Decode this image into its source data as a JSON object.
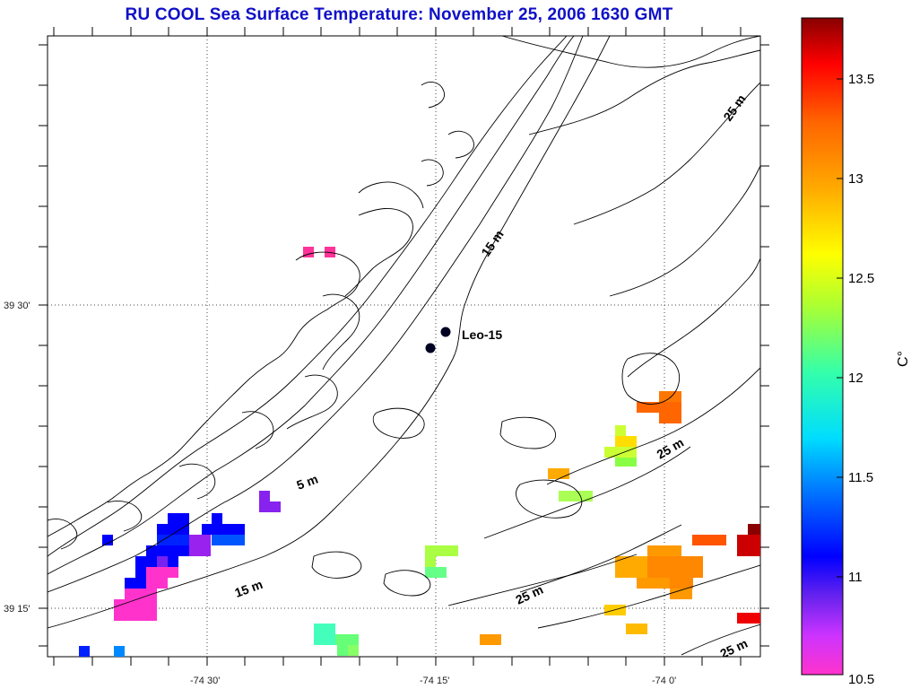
{
  "title": "RU COOL  Sea Surface Temperature:  November 25, 2006 1630 GMT",
  "axes": {
    "lat_labels": [
      "39 30'",
      "39 15'"
    ],
    "lon_labels": [
      "-74 30'",
      "-74 15'",
      "-74 0'"
    ]
  },
  "labels": {
    "station": "Leo-15",
    "depth_5": "5 m",
    "depth_15a": "15 m",
    "depth_15b": "15 m",
    "depth_25a": "25 m",
    "depth_25b": "25 m",
    "depth_25c": "25 m",
    "depth_25d": "25 m"
  },
  "colorbar": {
    "unit": "C°",
    "min": 10.5,
    "max": 13.8,
    "ticks": [
      "13.5",
      "13",
      "12.5",
      "12",
      "11.5",
      "11",
      "10.5"
    ],
    "colors": [
      "#ff33cc",
      "#cc33ff",
      "#6622ee",
      "#0000ff",
      "#0077ff",
      "#00ddff",
      "#33ffaa",
      "#aaff33",
      "#ffff00",
      "#ffaa00",
      "#ff6600",
      "#ff0000",
      "#880000"
    ]
  },
  "icons": {
    "station_markers": "filled-circle-markers"
  }
}
